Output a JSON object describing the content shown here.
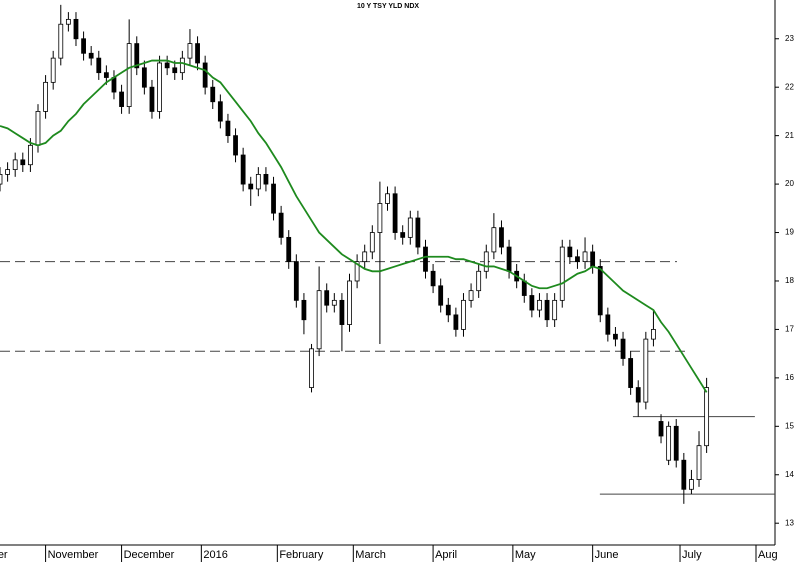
{
  "chart_data": {
    "type": "candlestick",
    "title": "10 Y TSY YLD NDX",
    "x": [
      0,
      2,
      4,
      6,
      8,
      10,
      12,
      14,
      16,
      18,
      20,
      22,
      24,
      26,
      28,
      30,
      32,
      34,
      36,
      38,
      40,
      42,
      44,
      46,
      48,
      50,
      52,
      54,
      56,
      58,
      60,
      62,
      64,
      66,
      68,
      70,
      72,
      74,
      76,
      78,
      80,
      82,
      84,
      86,
      88,
      90,
      92,
      94,
      96,
      98,
      100,
      102,
      104,
      106,
      108,
      110,
      112,
      114,
      116,
      118,
      120,
      122,
      124,
      126,
      128,
      130,
      132,
      134,
      136,
      138,
      140,
      142,
      144,
      146,
      148,
      150,
      152,
      154,
      156,
      158,
      160,
      162,
      164,
      166,
      168,
      170,
      172,
      174,
      176,
      178,
      180,
      182,
      184,
      186
    ],
    "open": [
      20.0,
      20.2,
      20.3,
      20.5,
      20.4,
      20.8,
      21.5,
      22.1,
      22.6,
      23.3,
      23.4,
      23.0,
      22.7,
      22.6,
      22.3,
      22.2,
      21.9,
      21.6,
      22.9,
      22.4,
      22.0,
      21.5,
      22.5,
      22.4,
      22.3,
      22.6,
      22.9,
      22.5,
      22.0,
      21.7,
      21.3,
      21.0,
      20.6,
      20.0,
      19.9,
      20.2,
      20.0,
      19.4,
      18.9,
      18.4,
      17.6,
      15.8,
      16.6,
      17.8,
      17.5,
      17.6,
      17.1,
      18.0,
      18.4,
      18.6,
      19.0,
      19.6,
      19.8,
      19.0,
      18.9,
      19.3,
      18.7,
      18.2,
      17.9,
      17.5,
      17.3,
      17.0,
      17.6,
      17.8,
      18.2,
      18.6,
      19.1,
      18.7,
      18.2,
      18.0,
      17.7,
      17.4,
      17.6,
      17.2,
      17.6,
      18.7,
      18.5,
      18.4,
      18.6,
      18.3,
      17.3,
      16.9,
      16.8,
      16.4,
      15.8,
      15.5,
      16.8,
      15.1,
      14.3,
      15.0,
      14.3,
      13.7,
      13.9,
      14.6
    ],
    "high": [
      20.35,
      20.45,
      20.65,
      20.65,
      20.95,
      21.65,
      22.25,
      22.75,
      23.7,
      23.55,
      23.55,
      23.15,
      22.85,
      22.75,
      22.45,
      22.35,
      22.05,
      23.4,
      23.05,
      22.55,
      22.15,
      22.65,
      22.65,
      22.55,
      22.75,
      23.2,
      23.05,
      22.65,
      22.15,
      21.85,
      21.45,
      21.15,
      20.75,
      20.15,
      20.35,
      20.35,
      20.15,
      19.55,
      19.05,
      18.55,
      17.75,
      16.7,
      18.3,
      17.95,
      17.75,
      17.75,
      18.15,
      18.55,
      18.75,
      19.15,
      20.05,
      19.95,
      19.95,
      19.15,
      19.45,
      19.45,
      18.85,
      18.35,
      18.05,
      17.65,
      17.45,
      17.75,
      17.95,
      18.35,
      18.75,
      19.4,
      19.25,
      18.85,
      18.35,
      18.15,
      17.85,
      17.75,
      17.75,
      17.75,
      18.85,
      18.85,
      18.65,
      18.9,
      18.75,
      18.45,
      17.45,
      17.05,
      16.95,
      16.55,
      15.95,
      16.95,
      17.4,
      15.25,
      15.1,
      15.15,
      14.45,
      14.1,
      14.9,
      16.0
    ],
    "low": [
      19.85,
      20.05,
      20.15,
      20.25,
      20.25,
      20.65,
      21.35,
      21.95,
      22.45,
      23.15,
      22.85,
      22.55,
      22.45,
      22.15,
      22.05,
      21.75,
      21.45,
      21.45,
      22.25,
      21.85,
      21.35,
      21.35,
      22.25,
      22.15,
      22.15,
      22.45,
      22.35,
      21.85,
      21.55,
      21.15,
      20.85,
      20.45,
      19.85,
      19.55,
      19.75,
      19.85,
      19.25,
      18.75,
      18.25,
      17.45,
      16.9,
      15.7,
      16.45,
      17.35,
      17.35,
      16.55,
      16.95,
      17.85,
      18.25,
      18.45,
      16.7,
      19.45,
      18.85,
      18.75,
      18.75,
      18.55,
      18.05,
      17.75,
      17.35,
      17.15,
      16.85,
      16.85,
      17.45,
      17.65,
      18.05,
      18.45,
      18.55,
      18.05,
      17.85,
      17.55,
      17.25,
      17.25,
      17.05,
      17.05,
      17.45,
      18.35,
      18.25,
      18.25,
      18.15,
      17.15,
      16.75,
      16.65,
      16.25,
      15.65,
      15.2,
      15.35,
      16.65,
      14.65,
      14.2,
      14.15,
      13.4,
      13.6,
      13.75,
      14.45
    ],
    "close": [
      20.2,
      20.3,
      20.5,
      20.4,
      20.8,
      21.5,
      22.1,
      22.6,
      23.3,
      23.4,
      23.0,
      22.7,
      22.6,
      22.3,
      22.2,
      21.9,
      21.6,
      22.9,
      22.4,
      22.0,
      21.5,
      22.5,
      22.4,
      22.3,
      22.6,
      22.9,
      22.5,
      22.0,
      21.7,
      21.3,
      21.0,
      20.6,
      20.0,
      19.9,
      20.2,
      20.0,
      19.4,
      18.9,
      18.4,
      17.6,
      17.2,
      16.6,
      17.8,
      17.5,
      17.6,
      17.1,
      18.0,
      18.4,
      18.6,
      19.0,
      19.6,
      19.8,
      19.0,
      18.9,
      19.3,
      18.7,
      18.2,
      17.9,
      17.5,
      17.3,
      17.0,
      17.6,
      17.8,
      18.2,
      18.6,
      19.1,
      18.7,
      18.2,
      18.0,
      17.7,
      17.4,
      17.6,
      17.2,
      17.6,
      18.7,
      18.5,
      18.4,
      18.6,
      18.3,
      17.3,
      16.9,
      16.8,
      16.4,
      15.8,
      15.5,
      16.8,
      17.0,
      14.8,
      15.0,
      14.3,
      13.7,
      13.9,
      14.6,
      15.8
    ],
    "moving_average": {
      "color": "#1e8a1e",
      "values": [
        21.2,
        21.15,
        21.05,
        20.95,
        20.85,
        20.8,
        20.85,
        21.0,
        21.1,
        21.3,
        21.45,
        21.65,
        21.8,
        21.95,
        22.1,
        22.2,
        22.3,
        22.4,
        22.45,
        22.5,
        22.55,
        22.55,
        22.55,
        22.5,
        22.5,
        22.45,
        22.4,
        22.35,
        22.2,
        22.1,
        21.9,
        21.7,
        21.5,
        21.3,
        21.05,
        20.85,
        20.6,
        20.35,
        20.05,
        19.75,
        19.5,
        19.25,
        19.0,
        18.85,
        18.7,
        18.55,
        18.45,
        18.35,
        18.25,
        18.2,
        18.2,
        18.25,
        18.3,
        18.35,
        18.4,
        18.45,
        18.5,
        18.5,
        18.5,
        18.5,
        18.45,
        18.45,
        18.4,
        18.35,
        18.3,
        18.3,
        18.25,
        18.2,
        18.1,
        18.0,
        17.9,
        17.85,
        17.85,
        17.9,
        17.95,
        18.05,
        18.15,
        18.2,
        18.3,
        18.25,
        18.1,
        17.95,
        17.8,
        17.7,
        17.6,
        17.5,
        17.4,
        17.15,
        16.95,
        16.7,
        16.45,
        16.2,
        15.95,
        15.7
      ]
    },
    "hlines": [
      {
        "y": 18.4,
        "x": [
          0,
          178.2
        ],
        "style": "dashed"
      },
      {
        "y": 16.55,
        "x": [
          0,
          180.3
        ],
        "style": "dashed"
      },
      {
        "y": 15.2,
        "x": [
          166.6,
          198.7
        ],
        "style": "solid"
      },
      {
        "y": 13.6,
        "x": [
          157.9,
          204
        ],
        "style": "solid"
      }
    ],
    "xlim": [
      0,
      204
    ],
    "ylim": [
      12.55,
      23.8
    ],
    "xticks": [
      {
        "value": -8,
        "label": "October"
      },
      {
        "value": 12,
        "label": "November"
      },
      {
        "value": 32,
        "label": "December"
      },
      {
        "value": 53,
        "label": "2016"
      },
      {
        "value": 73,
        "label": "February"
      },
      {
        "value": 93,
        "label": "March"
      },
      {
        "value": 114,
        "label": "April"
      },
      {
        "value": 135,
        "label": "May"
      },
      {
        "value": 156,
        "label": "June"
      },
      {
        "value": 179,
        "label": "July"
      },
      {
        "value": 199,
        "label": "Aug"
      }
    ],
    "yticks": [
      13,
      14,
      15,
      16,
      17,
      18,
      19,
      20,
      21,
      22,
      23
    ]
  }
}
